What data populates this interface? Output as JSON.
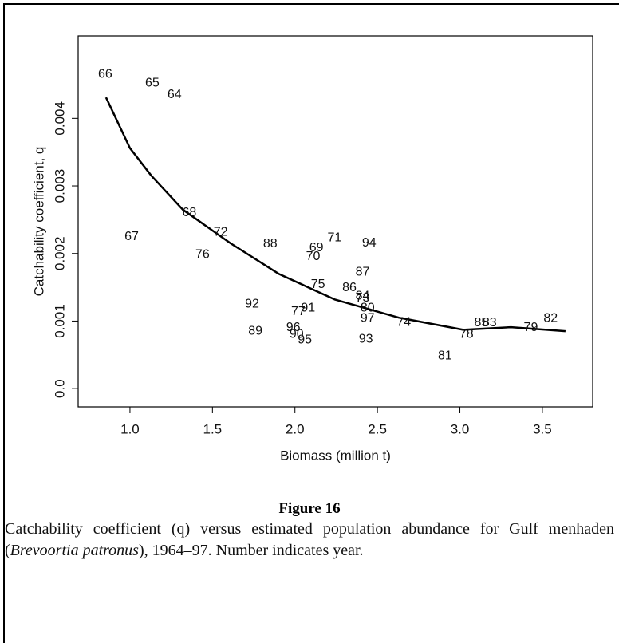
{
  "chart_data": {
    "type": "scatter",
    "x_label": "Biomass (million t)",
    "y_label": "Catchability coefficient, q",
    "xlim": [
      0.686,
      3.805
    ],
    "ylim": [
      -0.00027,
      0.00522
    ],
    "xticks": [
      {
        "value": 1,
        "label": "1.0"
      },
      1.5,
      {
        "value": 2,
        "label": "2.0"
      },
      2.5,
      {
        "value": 3,
        "label": "3.0"
      },
      3.5
    ],
    "yticks": [
      {
        "value": 0,
        "label": "0.0"
      },
      0.001,
      0.002,
      0.003,
      0.004
    ],
    "points": {
      "labels": [
        "64",
        "65",
        "66",
        "67",
        "68",
        "69",
        "70",
        "71",
        "72",
        "73",
        "74",
        "75",
        "76",
        "77",
        "78",
        "79",
        "80",
        "81",
        "82",
        "83",
        "84",
        "85",
        "86",
        "87",
        "88",
        "89",
        "90",
        "91",
        "92",
        "93",
        "94",
        "95",
        "96",
        "97"
      ],
      "x": [
        1.27,
        1.135,
        0.85,
        1.01,
        1.36,
        2.13,
        2.11,
        2.24,
        1.55,
        2.41,
        2.66,
        2.14,
        1.44,
        2.02,
        3.04,
        3.43,
        2.44,
        2.91,
        3.55,
        3.18,
        2.41,
        3.13,
        2.33,
        2.41,
        1.85,
        1.76,
        2.01,
        2.08,
        1.74,
        2.43,
        2.45,
        2.06,
        1.99,
        2.44
      ],
      "y": [
        0.00435,
        0.00452,
        0.00465,
        0.00225,
        0.0026,
        0.00208,
        0.00195,
        0.00223,
        0.00231,
        0.00134,
        0.00098,
        0.00154,
        0.00198,
        0.00114,
        0.0008,
        0.0009,
        0.00119,
        0.00048,
        0.00104,
        0.00097,
        0.00137,
        0.00097,
        0.00149,
        0.00172,
        0.00214,
        0.00085,
        0.0008,
        0.00119,
        0.00125,
        0.00073,
        0.00215,
        0.00072,
        0.0009,
        0.00104
      ]
    },
    "curve": {
      "color": "#000000",
      "x": [
        0.855,
        1.0,
        1.13,
        1.32,
        1.61,
        1.9,
        2.24,
        2.63,
        3.02,
        3.31,
        3.64
      ],
      "y": [
        0.00431,
        0.00356,
        0.00315,
        0.00265,
        0.00215,
        0.0017,
        0.00132,
        0.00105,
        0.00087,
        0.00091,
        0.00085
      ]
    }
  },
  "figure": {
    "label": "Figure 16",
    "caption_before": "Catchability coefficient (q) versus estimated population abundance for Gulf menhaden (",
    "caption_italic": "Brevoortia patronus",
    "caption_after": "), 1964–97. Number indicates year."
  }
}
